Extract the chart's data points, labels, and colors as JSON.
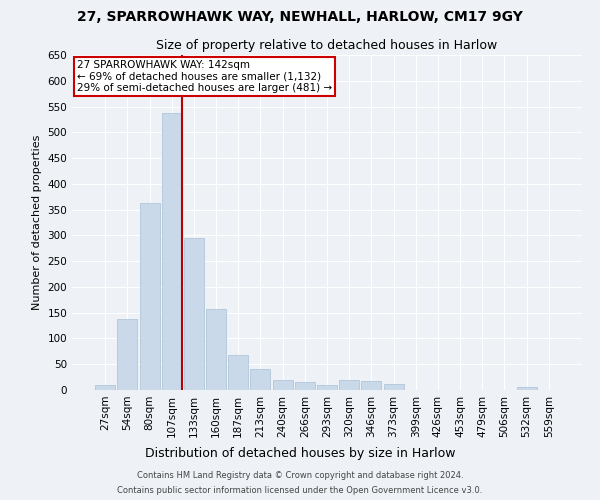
{
  "title": "27, SPARROWHAWK WAY, NEWHALL, HARLOW, CM17 9GY",
  "subtitle": "Size of property relative to detached houses in Harlow",
  "xlabel": "Distribution of detached houses by size in Harlow",
  "ylabel": "Number of detached properties",
  "bar_color": "#c9d9ea",
  "bar_edge_color": "#a8c0d6",
  "marker_color": "#bb0000",
  "annotation_line1": "27 SPARROWHAWK WAY: 142sqm",
  "annotation_line2": "← 69% of detached houses are smaller (1,132)",
  "annotation_line3": "29% of semi-detached houses are larger (481) →",
  "annotation_box_color": "#cc0000",
  "footer_line1": "Contains HM Land Registry data © Crown copyright and database right 2024.",
  "footer_line2": "Contains public sector information licensed under the Open Government Licence v3.0.",
  "categories": [
    "27sqm",
    "54sqm",
    "80sqm",
    "107sqm",
    "133sqm",
    "160sqm",
    "187sqm",
    "213sqm",
    "240sqm",
    "266sqm",
    "293sqm",
    "320sqm",
    "346sqm",
    "373sqm",
    "399sqm",
    "426sqm",
    "453sqm",
    "479sqm",
    "506sqm",
    "532sqm",
    "559sqm"
  ],
  "values": [
    10,
    137,
    362,
    537,
    295,
    158,
    68,
    40,
    20,
    16,
    10,
    20,
    18,
    12,
    0,
    0,
    0,
    0,
    0,
    5,
    0
  ],
  "ylim": [
    0,
    650
  ],
  "yticks": [
    0,
    50,
    100,
    150,
    200,
    250,
    300,
    350,
    400,
    450,
    500,
    550,
    600,
    650
  ],
  "background_color": "#eef2f7",
  "grid_color": "#ffffff",
  "title_fontsize": 10,
  "subtitle_fontsize": 9,
  "ylabel_fontsize": 8,
  "xlabel_fontsize": 9,
  "tick_fontsize": 7.5,
  "annotation_fontsize": 7.5,
  "footer_fontsize": 6
}
